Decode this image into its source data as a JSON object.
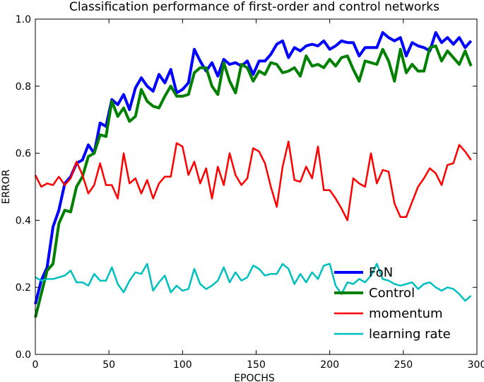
{
  "chart_data": {
    "type": "line",
    "title": "Classification performance of first-order and control networks",
    "xlabel": "EPOCHS",
    "ylabel": "ERROR",
    "xlim": [
      0,
      300
    ],
    "ylim": [
      0.0,
      1.0
    ],
    "xticks": [
      0,
      50,
      100,
      150,
      200,
      250,
      300
    ],
    "xtick_labels": [
      "0",
      "50",
      "100",
      "150",
      "200",
      "250",
      "300"
    ],
    "yticks": [
      0.0,
      0.2,
      0.4,
      0.6,
      0.8,
      1.0
    ],
    "ytick_labels": [
      "0.0",
      "0.2",
      "0.4",
      "0.6",
      "0.8",
      "1.0"
    ],
    "grid": false,
    "legend_position": "lower-right",
    "x": [
      0,
      4,
      8,
      12,
      16,
      20,
      24,
      28,
      32,
      36,
      40,
      44,
      48,
      52,
      56,
      60,
      64,
      68,
      72,
      76,
      80,
      84,
      88,
      92,
      96,
      100,
      104,
      108,
      112,
      116,
      120,
      124,
      128,
      132,
      136,
      140,
      144,
      148,
      152,
      156,
      160,
      164,
      168,
      172,
      176,
      180,
      184,
      188,
      192,
      196,
      200,
      204,
      208,
      212,
      216,
      220,
      224,
      228,
      232,
      236,
      240,
      244,
      248,
      252,
      256,
      260,
      264,
      268,
      272,
      276,
      280,
      284,
      288,
      292,
      296
    ],
    "series": [
      {
        "name": "FoN",
        "color": "#0000ff",
        "width": 4,
        "values": [
          0.15,
          0.22,
          0.26,
          0.38,
          0.43,
          0.51,
          0.53,
          0.57,
          0.58,
          0.625,
          0.6,
          0.69,
          0.68,
          0.76,
          0.745,
          0.775,
          0.73,
          0.795,
          0.825,
          0.8,
          0.785,
          0.835,
          0.81,
          0.85,
          0.78,
          0.79,
          0.81,
          0.91,
          0.875,
          0.845,
          0.87,
          0.83,
          0.88,
          0.865,
          0.87,
          0.86,
          0.875,
          0.835,
          0.875,
          0.875,
          0.895,
          0.925,
          0.935,
          0.885,
          0.915,
          0.905,
          0.92,
          0.925,
          0.92,
          0.935,
          0.91,
          0.92,
          0.935,
          0.93,
          0.93,
          0.89,
          0.915,
          0.915,
          0.915,
          0.96,
          0.945,
          0.935,
          0.945,
          0.89,
          0.93,
          0.92,
          0.915,
          0.905,
          0.96,
          0.93,
          0.945,
          0.925,
          0.945,
          0.915,
          0.935
        ]
      },
      {
        "name": "Control",
        "color": "#008000",
        "width": 4,
        "values": [
          0.11,
          0.18,
          0.25,
          0.27,
          0.39,
          0.43,
          0.425,
          0.5,
          0.53,
          0.59,
          0.6,
          0.655,
          0.65,
          0.755,
          0.71,
          0.735,
          0.695,
          0.71,
          0.79,
          0.755,
          0.74,
          0.735,
          0.77,
          0.8,
          0.77,
          0.77,
          0.775,
          0.84,
          0.855,
          0.855,
          0.8,
          0.775,
          0.87,
          0.815,
          0.78,
          0.865,
          0.855,
          0.815,
          0.845,
          0.835,
          0.87,
          0.865,
          0.84,
          0.845,
          0.855,
          0.83,
          0.89,
          0.86,
          0.865,
          0.855,
          0.88,
          0.86,
          0.885,
          0.89,
          0.85,
          0.815,
          0.875,
          0.87,
          0.865,
          0.91,
          0.875,
          0.815,
          0.91,
          0.84,
          0.865,
          0.845,
          0.845,
          0.915,
          0.92,
          0.875,
          0.905,
          0.885,
          0.865,
          0.905,
          0.86
        ]
      },
      {
        "name": "momentum",
        "color": "#ff0000",
        "width": 2.5,
        "values": [
          0.535,
          0.5,
          0.51,
          0.505,
          0.53,
          0.505,
          0.525,
          0.575,
          0.535,
          0.48,
          0.505,
          0.57,
          0.505,
          0.505,
          0.465,
          0.6,
          0.51,
          0.525,
          0.48,
          0.52,
          0.465,
          0.51,
          0.53,
          0.53,
          0.63,
          0.62,
          0.535,
          0.575,
          0.51,
          0.555,
          0.465,
          0.56,
          0.505,
          0.6,
          0.535,
          0.505,
          0.525,
          0.615,
          0.605,
          0.57,
          0.5,
          0.44,
          0.56,
          0.635,
          0.52,
          0.515,
          0.56,
          0.525,
          0.62,
          0.49,
          0.49,
          0.465,
          0.435,
          0.4,
          0.525,
          0.51,
          0.5,
          0.6,
          0.51,
          0.55,
          0.545,
          0.45,
          0.41,
          0.41,
          0.455,
          0.5,
          0.525,
          0.555,
          0.54,
          0.505,
          0.565,
          0.57,
          0.625,
          0.605,
          0.58
        ]
      },
      {
        "name": "learning rate",
        "color": "#00bfbf",
        "width": 2.5,
        "values": [
          0.23,
          0.22,
          0.225,
          0.225,
          0.23,
          0.235,
          0.25,
          0.215,
          0.215,
          0.205,
          0.24,
          0.22,
          0.22,
          0.26,
          0.21,
          0.185,
          0.22,
          0.245,
          0.24,
          0.27,
          0.19,
          0.215,
          0.235,
          0.185,
          0.205,
          0.19,
          0.195,
          0.255,
          0.21,
          0.195,
          0.205,
          0.22,
          0.26,
          0.215,
          0.245,
          0.22,
          0.23,
          0.265,
          0.255,
          0.235,
          0.24,
          0.24,
          0.27,
          0.255,
          0.21,
          0.24,
          0.215,
          0.245,
          0.225,
          0.265,
          0.27,
          0.205,
          0.18,
          0.215,
          0.21,
          0.225,
          0.215,
          0.235,
          0.27,
          0.225,
          0.22,
          0.21,
          0.205,
          0.21,
          0.215,
          0.195,
          0.21,
          0.215,
          0.2,
          0.19,
          0.2,
          0.195,
          0.18,
          0.16,
          0.175
        ]
      }
    ]
  }
}
